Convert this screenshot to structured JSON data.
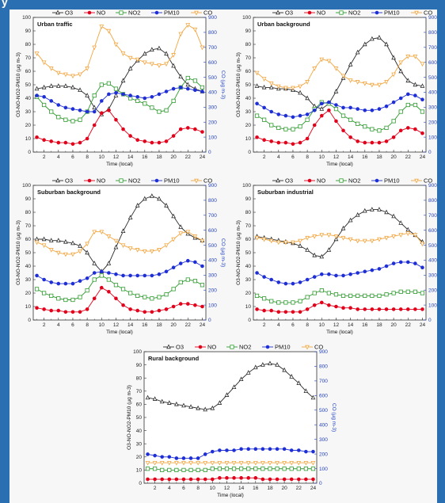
{
  "figure": {
    "header_fragment": "y"
  },
  "colors": {
    "O3": "#2b2b2b",
    "NO": "#e2001a",
    "NO2": "#2e9b2e",
    "PM10": "#1f2fd6",
    "CO": "#f3a640",
    "background": "#2b6fb3"
  },
  "chart_data": [
    {
      "type": "line",
      "title": "Urban traffic",
      "xlabel": "Time (local)",
      "ylabel": "O3-NO-NO2-PM10 (µg m-3)",
      "y2label": "CO (µg m-3)",
      "x": [
        1,
        2,
        3,
        4,
        5,
        6,
        7,
        8,
        9,
        10,
        11,
        12,
        13,
        14,
        15,
        16,
        17,
        18,
        19,
        20,
        21,
        22,
        23,
        24
      ],
      "xticks": [
        "2",
        "4",
        "6",
        "8",
        "10",
        "12",
        "14",
        "16",
        "18",
        "20",
        "22",
        "24"
      ],
      "ylim": [
        0,
        100
      ],
      "yticks": [
        "0",
        "10",
        "20",
        "30",
        "40",
        "50",
        "60",
        "70",
        "80",
        "90",
        "100"
      ],
      "y2lim": [
        0,
        900
      ],
      "y2ticks": [
        "0",
        "100",
        "200",
        "300",
        "400",
        "500",
        "600",
        "700",
        "800",
        "900"
      ],
      "legend": [
        "O3",
        "NO",
        "NO2",
        "PM10",
        "CO"
      ],
      "legend_position": "top",
      "series": [
        {
          "name": "O3",
          "axis": "left",
          "values": [
            47,
            48,
            49,
            49,
            49,
            48,
            46,
            42,
            33,
            28,
            32,
            42,
            53,
            62,
            68,
            73,
            76,
            77,
            73,
            64,
            56,
            50,
            47,
            45
          ]
        },
        {
          "name": "NO",
          "axis": "left",
          "values": [
            11,
            9,
            8,
            7,
            7,
            6,
            7,
            10,
            20,
            29,
            31,
            24,
            17,
            12,
            9,
            8,
            7,
            7,
            8,
            12,
            17,
            18,
            17,
            15
          ]
        },
        {
          "name": "NO2",
          "axis": "left",
          "values": [
            41,
            35,
            30,
            26,
            24,
            23,
            24,
            30,
            42,
            50,
            51,
            47,
            43,
            40,
            38,
            36,
            33,
            30,
            31,
            38,
            48,
            55,
            53,
            48
          ]
        },
        {
          "name": "PM10",
          "axis": "left",
          "values": [
            42,
            41,
            38,
            35,
            33,
            32,
            31,
            30,
            30,
            38,
            43,
            44,
            43,
            42,
            41,
            40,
            41,
            43,
            45,
            47,
            48,
            47,
            46,
            45
          ]
        },
        {
          "name": "CO",
          "axis": "right",
          "values": [
            660,
            600,
            560,
            530,
            520,
            510,
            520,
            560,
            700,
            840,
            810,
            720,
            660,
            630,
            620,
            600,
            590,
            580,
            590,
            650,
            790,
            850,
            820,
            700
          ]
        }
      ]
    },
    {
      "type": "line",
      "title": "Urban background",
      "xlabel": "Time (local)",
      "ylabel": "O3-NO-NO2-PM10 (µg m-3)",
      "y2label": "CO (µg m-3)",
      "x": [
        1,
        2,
        3,
        4,
        5,
        6,
        7,
        8,
        9,
        10,
        11,
        12,
        13,
        14,
        15,
        16,
        17,
        18,
        19,
        20,
        21,
        22,
        23,
        24
      ],
      "xticks": [
        "2",
        "4",
        "6",
        "8",
        "10",
        "12",
        "14",
        "16",
        "18",
        "20",
        "22",
        "24"
      ],
      "ylim": [
        0,
        100
      ],
      "yticks": [
        "0",
        "10",
        "20",
        "30",
        "40",
        "50",
        "60",
        "70",
        "80",
        "90",
        "100"
      ],
      "y2lim": [
        0,
        900
      ],
      "y2ticks": [
        "0",
        "100",
        "200",
        "300",
        "400",
        "500",
        "600",
        "700",
        "800",
        "900"
      ],
      "legend": [
        "O3",
        "NO",
        "NO2",
        "PM10",
        "CO"
      ],
      "legend_position": "top",
      "series": [
        {
          "name": "O3",
          "axis": "left",
          "values": [
            49,
            48,
            48,
            47,
            47,
            46,
            44,
            40,
            34,
            32,
            36,
            45,
            55,
            65,
            74,
            80,
            84,
            85,
            80,
            70,
            60,
            53,
            50,
            49
          ]
        },
        {
          "name": "NO",
          "axis": "left",
          "values": [
            11,
            9,
            8,
            7,
            7,
            6,
            7,
            10,
            20,
            27,
            31,
            23,
            16,
            11,
            8,
            7,
            7,
            7,
            8,
            11,
            16,
            18,
            17,
            14
          ]
        },
        {
          "name": "NO2",
          "axis": "left",
          "values": [
            27,
            24,
            20,
            18,
            17,
            17,
            19,
            24,
            32,
            37,
            36,
            32,
            27,
            24,
            21,
            19,
            17,
            16,
            18,
            23,
            30,
            35,
            35,
            30
          ]
        },
        {
          "name": "PM10",
          "axis": "left",
          "values": [
            36,
            33,
            30,
            28,
            27,
            26,
            27,
            28,
            31,
            36,
            37,
            35,
            33,
            33,
            32,
            31,
            31,
            32,
            34,
            37,
            40,
            43,
            42,
            39
          ]
        },
        {
          "name": "CO",
          "axis": "right",
          "values": [
            530,
            490,
            460,
            440,
            430,
            430,
            440,
            470,
            560,
            620,
            610,
            560,
            510,
            480,
            470,
            460,
            450,
            450,
            470,
            520,
            600,
            640,
            640,
            590
          ]
        }
      ]
    },
    {
      "type": "line",
      "title": "Suburban background",
      "xlabel": "Time (local)",
      "ylabel": "O3-NO-NO2-PM10 (µg m-3)",
      "y2label": "CO (µg m-3)",
      "x": [
        1,
        2,
        3,
        4,
        5,
        6,
        7,
        8,
        9,
        10,
        11,
        12,
        13,
        14,
        15,
        16,
        17,
        18,
        19,
        20,
        21,
        22,
        23,
        24
      ],
      "xticks": [
        "2",
        "4",
        "6",
        "8",
        "10",
        "12",
        "14",
        "16",
        "18",
        "20",
        "22",
        "24"
      ],
      "ylim": [
        0,
        100
      ],
      "yticks": [
        "0",
        "10",
        "20",
        "30",
        "40",
        "50",
        "60",
        "70",
        "80",
        "90",
        "100"
      ],
      "y2lim": [
        0,
        900
      ],
      "y2ticks": [
        "0",
        "100",
        "200",
        "300",
        "400",
        "500",
        "600",
        "700",
        "800",
        "900"
      ],
      "legend": [
        "O3",
        "NO",
        "NO2",
        "PM10",
        "CO"
      ],
      "legend_position": "top",
      "series": [
        {
          "name": "O3",
          "axis": "left",
          "values": [
            60,
            60,
            59,
            59,
            58,
            57,
            55,
            50,
            42,
            36,
            42,
            54,
            66,
            76,
            85,
            90,
            92,
            90,
            85,
            77,
            69,
            64,
            61,
            59
          ]
        },
        {
          "name": "NO",
          "axis": "left",
          "values": [
            9,
            8,
            7,
            7,
            6,
            6,
            6,
            8,
            16,
            24,
            21,
            16,
            11,
            8,
            7,
            6,
            6,
            7,
            8,
            10,
            12,
            12,
            11,
            10
          ]
        },
        {
          "name": "NO2",
          "axis": "left",
          "values": [
            23,
            20,
            18,
            16,
            15,
            15,
            17,
            22,
            30,
            33,
            30,
            26,
            23,
            20,
            18,
            17,
            16,
            17,
            19,
            23,
            28,
            30,
            29,
            26
          ]
        },
        {
          "name": "PM10",
          "axis": "left",
          "values": [
            33,
            30,
            28,
            27,
            27,
            27,
            29,
            31,
            35,
            36,
            35,
            34,
            33,
            33,
            33,
            33,
            33,
            34,
            36,
            39,
            42,
            44,
            43,
            40
          ]
        },
        {
          "name": "CO",
          "axis": "right",
          "values": [
            520,
            500,
            470,
            450,
            440,
            440,
            460,
            510,
            590,
            590,
            560,
            530,
            500,
            480,
            470,
            460,
            460,
            470,
            500,
            540,
            580,
            590,
            560,
            530
          ]
        }
      ]
    },
    {
      "type": "line",
      "title": "Suburban industrial",
      "xlabel": "Time (local)",
      "ylabel": "O3-NO-NO2-PM10 (µg m-3)",
      "y2label": "CO (µg m-3)",
      "x": [
        1,
        2,
        3,
        4,
        5,
        6,
        7,
        8,
        9,
        10,
        11,
        12,
        13,
        14,
        15,
        16,
        17,
        18,
        19,
        20,
        21,
        22,
        23,
        24
      ],
      "xticks": [
        "2",
        "4",
        "6",
        "8",
        "10",
        "12",
        "14",
        "16",
        "18",
        "20",
        "22",
        "24"
      ],
      "ylim": [
        0,
        100
      ],
      "yticks": [
        "0",
        "10",
        "20",
        "30",
        "40",
        "50",
        "60",
        "70",
        "80",
        "90",
        "100"
      ],
      "y2lim": [
        0,
        900
      ],
      "y2ticks": [
        "0",
        "100",
        "200",
        "300",
        "400",
        "500",
        "600",
        "700",
        "800",
        "900"
      ],
      "legend": [
        "O3",
        "NO",
        "NO2",
        "PM10",
        "CO"
      ],
      "legend_position": "top",
      "series": [
        {
          "name": "O3",
          "axis": "left",
          "values": [
            62,
            61,
            60,
            59,
            58,
            57,
            55,
            52,
            48,
            47,
            52,
            60,
            68,
            74,
            78,
            81,
            82,
            82,
            80,
            77,
            72,
            67,
            63,
            58
          ]
        },
        {
          "name": "NO",
          "axis": "left",
          "values": [
            8,
            7,
            7,
            6,
            6,
            6,
            6,
            8,
            11,
            13,
            11,
            10,
            9,
            9,
            8,
            8,
            8,
            8,
            8,
            8,
            8,
            8,
            8,
            8
          ]
        },
        {
          "name": "NO2",
          "axis": "left",
          "values": [
            18,
            16,
            14,
            13,
            13,
            13,
            14,
            17,
            20,
            22,
            20,
            19,
            18,
            18,
            18,
            18,
            18,
            18,
            19,
            20,
            21,
            21,
            21,
            20
          ]
        },
        {
          "name": "PM10",
          "axis": "left",
          "values": [
            35,
            32,
            30,
            28,
            27,
            27,
            28,
            30,
            32,
            34,
            34,
            33,
            33,
            34,
            35,
            36,
            37,
            38,
            40,
            42,
            43,
            43,
            42,
            39
          ]
        },
        {
          "name": "CO",
          "axis": "right",
          "values": [
            550,
            540,
            530,
            520,
            520,
            520,
            530,
            550,
            560,
            570,
            570,
            560,
            550,
            540,
            530,
            530,
            530,
            540,
            550,
            560,
            570,
            580,
            570,
            510
          ]
        }
      ]
    },
    {
      "type": "line",
      "title": "Rural background",
      "xlabel": "Time (local)",
      "ylabel": "O3-NO-NO2-PM10 (µg m-3)",
      "y2label": "CO (µg m-3)",
      "x": [
        1,
        2,
        3,
        4,
        5,
        6,
        7,
        8,
        9,
        10,
        11,
        12,
        13,
        14,
        15,
        16,
        17,
        18,
        19,
        20,
        21,
        22,
        23,
        24
      ],
      "xticks": [
        "2",
        "4",
        "6",
        "8",
        "10",
        "12",
        "14",
        "16",
        "18",
        "20",
        "22",
        "24"
      ],
      "ylim": [
        0,
        100
      ],
      "yticks": [
        "0",
        "10",
        "20",
        "30",
        "40",
        "50",
        "60",
        "70",
        "80",
        "90",
        "100"
      ],
      "y2lim": [
        0,
        900
      ],
      "y2ticks": [
        "0",
        "100",
        "200",
        "300",
        "400",
        "500",
        "600",
        "700",
        "800",
        "900"
      ],
      "legend": [
        "O3",
        "NO",
        "NO2",
        "PM10",
        "CO"
      ],
      "legend_position": "top",
      "series": [
        {
          "name": "O3",
          "axis": "left",
          "values": [
            65,
            64,
            62,
            61,
            60,
            59,
            58,
            57,
            56,
            57,
            61,
            67,
            73,
            79,
            84,
            88,
            90,
            91,
            90,
            86,
            81,
            76,
            70,
            65
          ]
        },
        {
          "name": "NO",
          "axis": "left",
          "values": [
            3,
            3,
            3,
            3,
            3,
            3,
            3,
            3,
            3,
            3,
            4,
            4,
            4,
            4,
            4,
            4,
            3,
            3,
            3,
            3,
            3,
            3,
            3,
            3
          ]
        },
        {
          "name": "NO2",
          "axis": "left",
          "values": [
            11,
            11,
            10,
            10,
            10,
            10,
            10,
            10,
            10,
            11,
            11,
            11,
            11,
            11,
            11,
            11,
            11,
            11,
            11,
            11,
            11,
            11,
            11,
            11
          ]
        },
        {
          "name": "PM10",
          "axis": "left",
          "values": [
            22,
            21,
            20,
            20,
            19,
            19,
            19,
            19,
            22,
            24,
            25,
            25,
            25,
            26,
            26,
            26,
            26,
            26,
            26,
            26,
            25,
            25,
            24,
            24
          ]
        },
        {
          "name": "CO",
          "axis": "right",
          "values": [
            140,
            140,
            140,
            140,
            140,
            140,
            140,
            140,
            140,
            140,
            140,
            140,
            140,
            140,
            140,
            140,
            140,
            140,
            140,
            140,
            140,
            140,
            140,
            140
          ]
        }
      ]
    }
  ]
}
